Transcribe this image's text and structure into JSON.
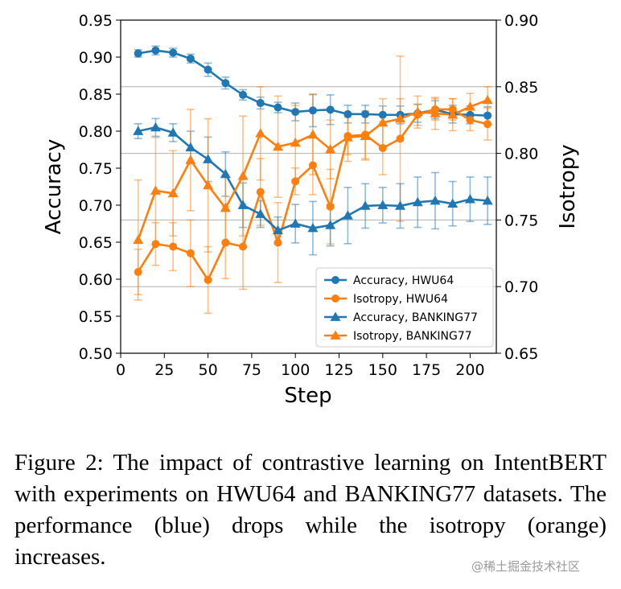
{
  "chart_data": {
    "type": "line",
    "xlabel": "Step",
    "ylabel_left": "Accuracy",
    "ylabel_right": "Isotropy",
    "xlim": [
      0,
      215
    ],
    "ylim_left": [
      0.5,
      0.95
    ],
    "ylim_right": [
      0.65,
      0.9
    ],
    "x_ticks": [
      0,
      25,
      50,
      75,
      100,
      125,
      150,
      175,
      200
    ],
    "y_ticks_left": [
      "0.50",
      "0.55",
      "0.60",
      "0.65",
      "0.70",
      "0.75",
      "0.80",
      "0.85",
      "0.90",
      "0.95"
    ],
    "y_ticks_right": [
      "0.65",
      "0.70",
      "0.75",
      "0.80",
      "0.85",
      "0.90"
    ],
    "right_axis_grid": true,
    "legend_position": "lower-right",
    "x": [
      10,
      20,
      30,
      40,
      50,
      60,
      70,
      80,
      90,
      100,
      110,
      120,
      130,
      140,
      150,
      160,
      170,
      180,
      190,
      200,
      210
    ],
    "series": [
      {
        "name": "Accuracy, HWU64",
        "axis": "left",
        "color": "#1f77b4",
        "marker": "circle",
        "values": [
          0.905,
          0.909,
          0.906,
          0.898,
          0.883,
          0.865,
          0.849,
          0.838,
          0.832,
          0.826,
          0.828,
          0.829,
          0.823,
          0.823,
          0.822,
          0.822,
          0.824,
          0.829,
          0.823,
          0.822,
          0.821
        ],
        "errors": [
          0.005,
          0.006,
          0.006,
          0.006,
          0.009,
          0.008,
          0.007,
          0.008,
          0.007,
          0.012,
          0.022,
          0.02,
          0.012,
          0.012,
          0.012,
          0.012,
          0.012,
          0.012,
          0.012,
          0.012,
          0.012
        ]
      },
      {
        "name": "Isotropy,  HWU64",
        "axis": "right",
        "color": "#ff7f0e",
        "marker": "circle",
        "values": [
          0.711,
          0.732,
          0.73,
          0.725,
          0.705,
          0.733,
          0.73,
          0.771,
          0.733,
          0.779,
          0.791,
          0.76,
          0.813,
          0.814,
          0.804,
          0.811,
          0.829,
          0.833,
          0.833,
          0.825,
          0.822
        ],
        "errors": [
          0.017,
          0.016,
          0.018,
          0.025,
          0.025,
          0.027,
          0.032,
          0.025,
          0.03,
          0.01,
          0.022,
          0.028,
          0.014,
          0.018,
          0.02,
          0.062,
          0.008,
          0.008,
          0.008,
          0.008,
          0.012
        ]
      },
      {
        "name": "Accuracy, BANKING77",
        "axis": "left",
        "color": "#1f77b4",
        "marker": "triangle",
        "values": [
          0.8,
          0.805,
          0.798,
          0.778,
          0.762,
          0.742,
          0.7,
          0.688,
          0.666,
          0.675,
          0.669,
          0.673,
          0.686,
          0.699,
          0.7,
          0.699,
          0.704,
          0.706,
          0.702,
          0.708,
          0.706
        ],
        "errors": [
          0.01,
          0.012,
          0.012,
          0.022,
          0.03,
          0.03,
          0.03,
          0.018,
          0.018,
          0.026,
          0.036,
          0.028,
          0.038,
          0.03,
          0.024,
          0.03,
          0.034,
          0.038,
          0.03,
          0.03,
          0.032
        ]
      },
      {
        "name": "Isotropy,  BANKING77",
        "axis": "right",
        "color": "#ff7f0e",
        "marker": "triangle",
        "values": [
          0.735,
          0.772,
          0.77,
          0.795,
          0.776,
          0.759,
          0.783,
          0.815,
          0.805,
          0.808,
          0.814,
          0.803,
          0.812,
          0.813,
          0.823,
          0.826,
          0.831,
          0.83,
          0.829,
          0.835,
          0.84
        ],
        "errors": [
          0.045,
          0.04,
          0.032,
          0.038,
          0.05,
          0.025,
          0.045,
          0.035,
          0.038,
          0.028,
          0.03,
          0.022,
          0.018,
          0.018,
          0.018,
          0.015,
          0.012,
          0.012,
          0.012,
          0.01,
          0.01
        ]
      }
    ]
  },
  "caption": "Figure 2:  The impact of contrastive learning on IntentBERT with experiments on HWU64 and BANKING77 datasets.  The performance (blue) drops while the isotropy (orange) increases.",
  "watermark": "@稀土掘金技术社区"
}
